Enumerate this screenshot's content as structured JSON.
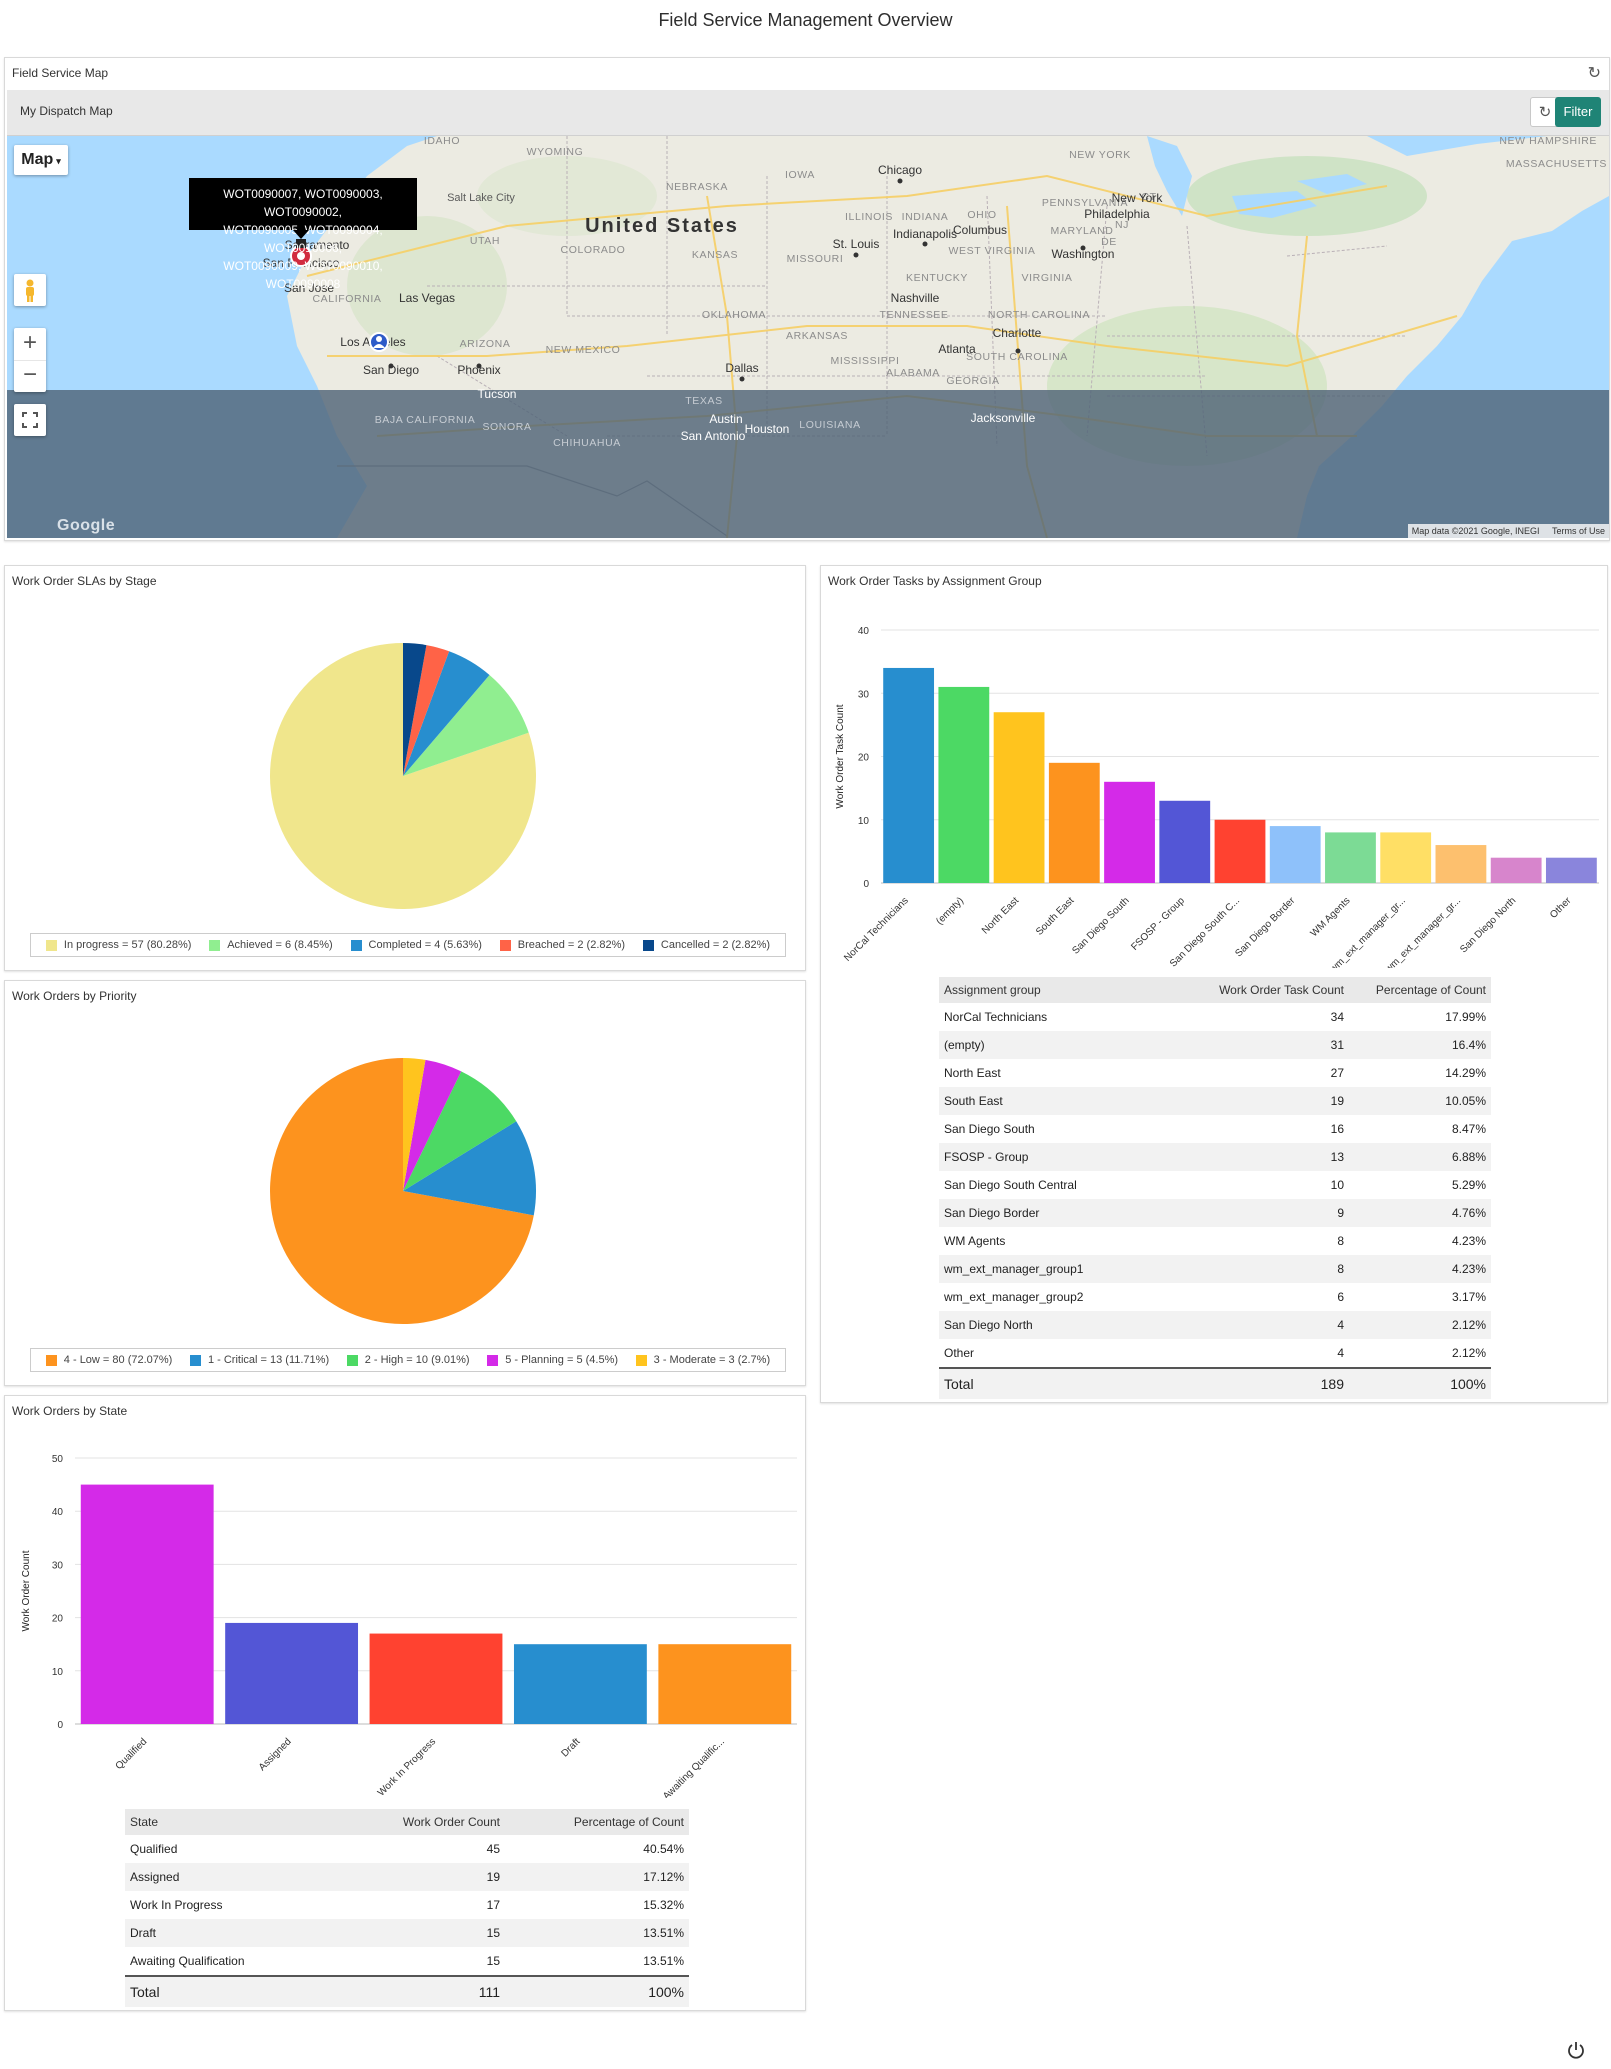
{
  "page": {
    "title": "Field Service Management Overview"
  },
  "map_panel": {
    "title": "Field Service Map",
    "toolbar_label": "My Dispatch Map",
    "filter_label": "Filter",
    "map_type_label": "Map",
    "attribution": "Map data ©2021 Google, INEGI",
    "terms": "Terms of Use",
    "google_logo": "Google",
    "zoom_in": "+",
    "zoom_out": "−",
    "tooltip_lines": [
      "WOT0090007, WOT0090003, WOT0090002,",
      "WOT0090005, WOT0090004, WOT0010006,",
      "WOT0090009, WOT0090010, WOT0090008"
    ],
    "map_labels": {
      "country": "United States",
      "cities": [
        "Chicago",
        "Salt Lake City",
        "New York",
        "Philadelphia",
        "Indianapolis",
        "Columbus",
        "Washington",
        "St. Louis",
        "Nashville",
        "Charlotte",
        "Atlanta",
        "Dallas",
        "Austin",
        "San Antonio",
        "Houston",
        "Jacksonville",
        "Las Vegas",
        "Phoenix",
        "San Diego",
        "Los Angeles",
        "San Jose",
        "San Francisco",
        "Sacramento",
        "Tucson"
      ],
      "states": [
        "IDAHO",
        "WYOMING",
        "NEBRASKA",
        "IOWA",
        "UTAH",
        "COLORADO",
        "KANSAS",
        "MISSOURI",
        "ILLINOIS",
        "INDIANA",
        "OHIO",
        "PENNSYLVANIA",
        "NEW YORK",
        "NEW HAMPSHIRE",
        "MASSACHUSETTS",
        "CT",
        "NJ",
        "MARYLAND",
        "DE",
        "WEST VIRGINIA",
        "VIRGINIA",
        "KENTUCKY",
        "TENNESSEE",
        "NORTH CAROLINA",
        "SOUTH CAROLINA",
        "GEORGIA",
        "ALABAMA",
        "MISSISSIPPI",
        "ARKANSAS",
        "OKLAHOMA",
        "NEW MEXICO",
        "ARIZONA",
        "CALIFORNIA",
        "TEXAS",
        "LOUISIANA",
        "BAJA CALIFORNIA",
        "SONORA",
        "CHIHUAHUA"
      ]
    }
  },
  "sla_panel": {
    "title": "Work Order SLAs by Stage",
    "chart_data": {
      "type": "pie",
      "slices": [
        {
          "label": "In progress = 57 (80.28%)",
          "value": 57,
          "color": "#f0e68c"
        },
        {
          "label": "Achieved = 6 (8.45%)",
          "value": 6,
          "color": "#90ee90"
        },
        {
          "label": "Completed = 4 (5.63%)",
          "value": 4,
          "color": "#278ecf"
        },
        {
          "label": "Breached = 2 (2.82%)",
          "value": 2,
          "color": "#ff6347"
        },
        {
          "label": "Cancelled = 2 (2.82%)",
          "value": 2,
          "color": "#08488b"
        }
      ]
    }
  },
  "priority_panel": {
    "title": "Work Orders by Priority",
    "chart_data": {
      "type": "pie",
      "slices": [
        {
          "label": "4 - Low = 80 (72.07%)",
          "value": 80,
          "color": "#fd931e"
        },
        {
          "label": "1 - Critical = 13 (11.71%)",
          "value": 13,
          "color": "#278ecf"
        },
        {
          "label": "2 - High = 10 (9.01%)",
          "value": 10,
          "color": "#4cd964"
        },
        {
          "label": "5 - Planning = 5 (4.5%)",
          "value": 5,
          "color": "#d42ae8"
        },
        {
          "label": "3 - Moderate = 3 (2.7%)",
          "value": 3,
          "color": "#ffc41e"
        }
      ]
    }
  },
  "state_panel": {
    "title": "Work Orders by State",
    "chart_data": {
      "type": "bar",
      "categories": [
        "Qualified",
        "Assigned",
        "Work In Progress",
        "Draft",
        "Awaiting Qualific..."
      ],
      "values": [
        45,
        19,
        17,
        15,
        15
      ],
      "colors": [
        "#d42ae8",
        "#5356d6",
        "#ff4230",
        "#278ecf",
        "#fd931e"
      ],
      "ylabel": "Work Order Count",
      "ylim": [
        0,
        50
      ],
      "yticks": [
        0,
        10,
        20,
        30,
        40,
        50
      ]
    },
    "table": {
      "headers": [
        "State",
        "Work Order Count",
        "Percentage of Count"
      ],
      "rows": [
        [
          "Qualified",
          "45",
          "40.54%"
        ],
        [
          "Assigned",
          "19",
          "17.12%"
        ],
        [
          "Work In Progress",
          "17",
          "15.32%"
        ],
        [
          "Draft",
          "15",
          "13.51%"
        ],
        [
          "Awaiting Qualification",
          "15",
          "13.51%"
        ]
      ],
      "total": [
        "Total",
        "111",
        "100%"
      ]
    }
  },
  "tasks_panel": {
    "title": "Work Order Tasks by Assignment Group",
    "chart_data": {
      "type": "bar",
      "categories": [
        "NorCal Technicians",
        "(empty)",
        "North East",
        "South East",
        "San Diego South",
        "FSOSP - Group",
        "San Diego South C...",
        "San Diego Border",
        "WM Agents",
        "wm_ext_manager_gr...",
        "wm_ext_manager_gr...",
        "San Diego North",
        "Other"
      ],
      "values": [
        34,
        31,
        27,
        19,
        16,
        13,
        10,
        9,
        8,
        8,
        6,
        4,
        4
      ],
      "colors": [
        "#278ecf",
        "#4cd964",
        "#ffc41e",
        "#fd931e",
        "#d42ae8",
        "#5356d6",
        "#ff4230",
        "#8ec1fa",
        "#7cdb95",
        "#ffdf65",
        "#fdc06e",
        "#d785cc",
        "#8a85dc"
      ],
      "ylabel": "Work Order Task Count",
      "ylim": [
        0,
        40
      ],
      "yticks": [
        0,
        10,
        20,
        30,
        40
      ]
    },
    "table": {
      "headers": [
        "Assignment group",
        "Work Order Task Count",
        "Percentage of Count"
      ],
      "rows": [
        [
          "NorCal Technicians",
          "34",
          "17.99%"
        ],
        [
          "(empty)",
          "31",
          "16.4%"
        ],
        [
          "North East",
          "27",
          "14.29%"
        ],
        [
          "South East",
          "19",
          "10.05%"
        ],
        [
          "San Diego South",
          "16",
          "8.47%"
        ],
        [
          "FSOSP - Group",
          "13",
          "6.88%"
        ],
        [
          "San Diego South Central",
          "10",
          "5.29%"
        ],
        [
          "San Diego Border",
          "9",
          "4.76%"
        ],
        [
          "WM Agents",
          "8",
          "4.23%"
        ],
        [
          "wm_ext_manager_group1",
          "8",
          "4.23%"
        ],
        [
          "wm_ext_manager_group2",
          "6",
          "3.17%"
        ],
        [
          "San Diego North",
          "4",
          "2.12%"
        ],
        [
          "Other",
          "4",
          "2.12%"
        ]
      ],
      "total": [
        "Total",
        "189",
        "100%"
      ]
    }
  }
}
